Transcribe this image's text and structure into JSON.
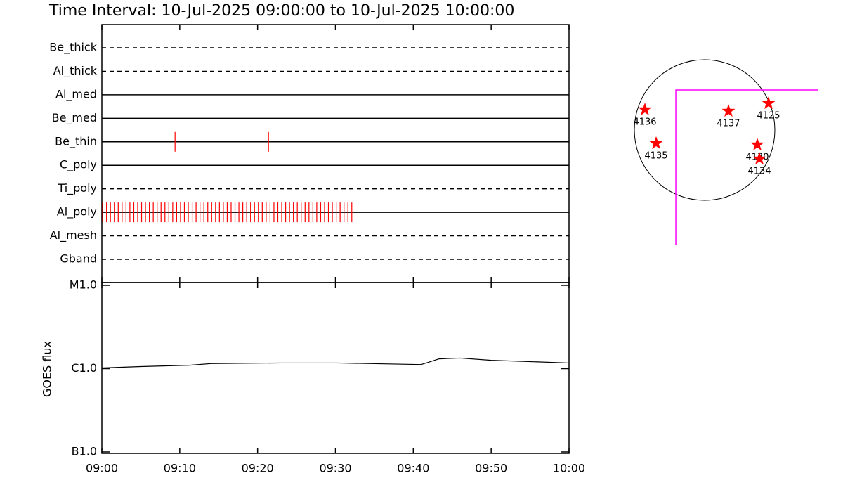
{
  "chart_data": [
    {
      "type": "timeline",
      "title": "Time Interval: 10-Jul-2025 09:00:00 to 10-Jul-2025 10:00:00",
      "exposure_color": "#ff0000",
      "filters": [
        {
          "name": "Be_thick",
          "style": "dashed",
          "exposures": []
        },
        {
          "name": "Al_thick",
          "style": "dashed",
          "exposures": []
        },
        {
          "name": "Al_med",
          "style": "solid",
          "exposures": []
        },
        {
          "name": "Be_med",
          "style": "solid",
          "exposures": []
        },
        {
          "name": "Be_thin",
          "style": "solid",
          "exposures": [
            9.4,
            21.4
          ]
        },
        {
          "name": "C_poly",
          "style": "solid",
          "exposures": []
        },
        {
          "name": "Ti_poly",
          "style": "dashed",
          "exposures": []
        },
        {
          "name": "Al_poly",
          "style": "solid",
          "exposures": [
            0.1,
            0.6,
            1.1,
            1.6,
            2.1,
            2.6,
            3.1,
            3.6,
            4.1,
            4.6,
            5.1,
            5.6,
            6.1,
            6.6,
            7.1,
            7.6,
            8.1,
            8.6,
            9.1,
            9.6,
            10.1,
            10.6,
            11.1,
            11.6,
            12.1,
            12.6,
            13.1,
            13.6,
            14.1,
            14.6,
            15.1,
            15.6,
            16.1,
            16.6,
            17.1,
            17.6,
            18.1,
            18.6,
            19.1,
            19.6,
            20.1,
            20.6,
            21.1,
            21.6,
            22.1,
            22.6,
            23.1,
            23.6,
            24.1,
            24.6,
            25.1,
            25.6,
            26.1,
            26.6,
            27.1,
            27.6,
            28.1,
            28.6,
            29.1,
            29.6,
            30.1,
            30.6,
            31.1,
            31.6,
            32.1
          ]
        },
        {
          "name": "Al_mesh",
          "style": "dashed",
          "exposures": []
        },
        {
          "name": "Gband",
          "style": "dashed",
          "exposures": []
        }
      ]
    },
    {
      "type": "line",
      "ylabel": "GOES flux",
      "log_scale": true,
      "xlim": [
        0,
        60
      ],
      "xticks": [
        {
          "value": 0,
          "label": "09:00"
        },
        {
          "value": 10,
          "label": "09:10"
        },
        {
          "value": 20,
          "label": "09:20"
        },
        {
          "value": 30,
          "label": "09:30"
        },
        {
          "value": 40,
          "label": "09:40"
        },
        {
          "value": 50,
          "label": "09:50"
        },
        {
          "value": 60,
          "label": "10:00"
        }
      ],
      "ylim": [
        1e-07,
        1e-05
      ],
      "yticks": [
        {
          "value": 1e-07,
          "label": "B1.0"
        },
        {
          "value": 1e-06,
          "label": "C1.0"
        },
        {
          "value": 1e-05,
          "label": "M1.0"
        }
      ],
      "x": [
        0,
        5,
        11.3,
        14,
        23,
        30.2,
        41,
        41.9,
        43.3,
        46,
        50,
        60
      ],
      "series": [
        {
          "color": "#000000",
          "values": [
            1.02e-06,
            1.06e-06,
            1.1e-06,
            1.15e-06,
            1.17e-06,
            1.17e-06,
            1.12e-06,
            1.19e-06,
            1.31e-06,
            1.34e-06,
            1.26e-06,
            1.17e-06
          ]
        }
      ]
    },
    {
      "type": "map",
      "solar_radius": 945,
      "star_color": "#ff0000",
      "fov_color": "#ff00ff",
      "fov": {
        "xlim": [
          -387,
          1531
        ],
        "ylim": [
          -1540,
          539
        ]
      },
      "regions": [
        {
          "name": "4136",
          "x": -803,
          "y": 274
        },
        {
          "name": "4135",
          "x": -652,
          "y": -180
        },
        {
          "name": "4137",
          "x": 321,
          "y": 255
        },
        {
          "name": "4125",
          "x": 860,
          "y": 359
        },
        {
          "name": "4130",
          "x": 709,
          "y": -198
        },
        {
          "name": "4134",
          "x": 737,
          "y": -387
        }
      ]
    }
  ]
}
